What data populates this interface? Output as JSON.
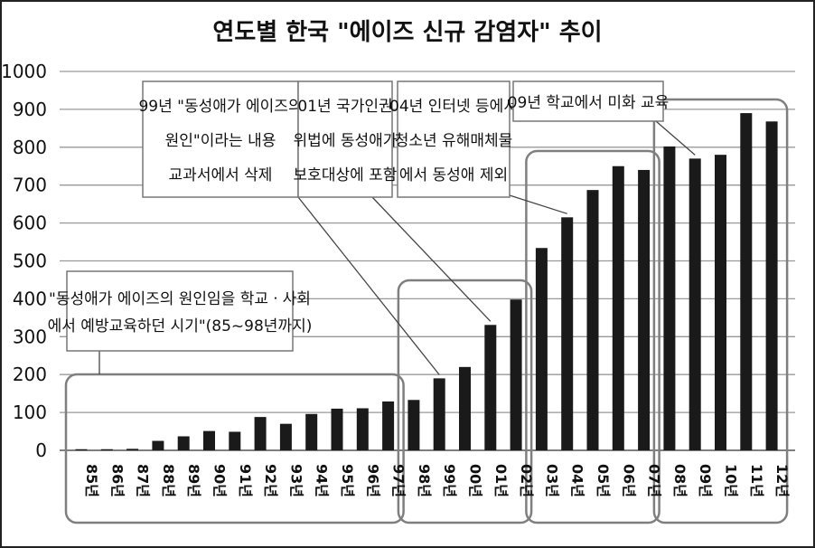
{
  "chart_data": {
    "type": "bar",
    "title": "연도별 한국 \"에이즈 신규 감염자\" 추이",
    "xlabel": "",
    "ylabel": "",
    "ylim": [
      0,
      1000
    ],
    "yticks": [
      0,
      100,
      200,
      300,
      400,
      500,
      600,
      700,
      800,
      900,
      1000
    ],
    "grid": true,
    "categories": [
      "85년",
      "86년",
      "87년",
      "88년",
      "89년",
      "90년",
      "91년",
      "92년",
      "93년",
      "94년",
      "95년",
      "96년",
      "97년",
      "98년",
      "99년",
      "00년",
      "01년",
      "02년",
      "03년",
      "04년",
      "05년",
      "06년",
      "07년",
      "08년",
      "09년",
      "10년",
      "11년",
      "12년"
    ],
    "values": [
      3,
      3,
      4,
      25,
      37,
      51,
      49,
      88,
      70,
      96,
      110,
      111,
      129,
      133,
      190,
      220,
      331,
      398,
      534,
      615,
      687,
      750,
      740,
      802,
      770,
      780,
      890,
      868
    ],
    "bar_color": "#1a1a1a",
    "group_colors": {
      "box_border": "#7f7f7f"
    },
    "groups": [
      {
        "from": 0,
        "to": 12
      },
      {
        "from": 13,
        "to": 17
      },
      {
        "from": 18,
        "to": 22
      },
      {
        "from": 23,
        "to": 27
      }
    ],
    "annotations": [
      {
        "lines": [
          "\"동성애가 에이즈의 원인임을 학교ㆍ사회",
          "에서 예방교육하던 시기\"(85~98년까지)"
        ],
        "group": 0
      },
      {
        "lines": [
          "99년 \"동성애가 에이즈의",
          "원인\"이라는 내용",
          "교과서에서 삭제"
        ],
        "target": 14
      },
      {
        "lines": [
          "01년 국가인권",
          "위법에 동성애가",
          "보호대상에 포함"
        ],
        "target": 16
      },
      {
        "lines": [
          "04년 인터넷 등에서",
          "청소년 유해매체물",
          "에서 동성애 제외"
        ],
        "target": 19
      },
      {
        "lines": [
          "09년 학교에서 미화 교육"
        ],
        "target": 24
      }
    ]
  }
}
